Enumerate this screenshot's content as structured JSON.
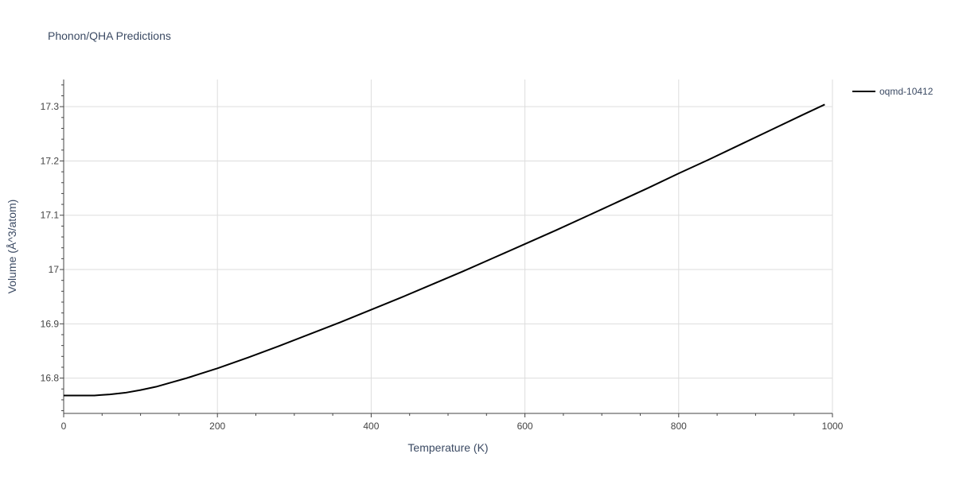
{
  "chart_data": {
    "type": "line",
    "title": "Phonon/QHA Predictions",
    "xlabel": "Temperature (K)",
    "ylabel": "Volume (Å^3/atom)",
    "xlim": [
      0,
      1000
    ],
    "ylim": [
      16.735,
      17.35
    ],
    "x_ticks": [
      0,
      200,
      400,
      600,
      800,
      1000
    ],
    "x_tick_labels": [
      "0",
      "200",
      "400",
      "600",
      "800",
      "1000"
    ],
    "y_ticks": [
      16.8,
      16.9,
      17.0,
      17.1,
      17.2,
      17.3
    ],
    "y_tick_labels": [
      "16.8",
      "16.9",
      "17",
      "17.1",
      "17.2",
      "17.3"
    ],
    "grid": true,
    "legend_position": "top-right",
    "series": [
      {
        "name": "oqmd-10412",
        "color": "#000000",
        "x": [
          0,
          20,
          40,
          50,
          60,
          80,
          100,
          120,
          140,
          160,
          180,
          200,
          240,
          280,
          320,
          360,
          400,
          440,
          480,
          520,
          560,
          600,
          640,
          680,
          720,
          760,
          800,
          840,
          880,
          920,
          960,
          990
        ],
        "y": [
          16.768,
          16.768,
          16.768,
          16.769,
          16.77,
          16.773,
          16.778,
          16.784,
          16.792,
          16.8,
          16.809,
          16.818,
          16.838,
          16.859,
          16.881,
          16.903,
          16.926,
          16.949,
          16.973,
          16.997,
          17.022,
          17.047,
          17.072,
          17.098,
          17.124,
          17.15,
          17.177,
          17.203,
          17.23,
          17.257,
          17.284,
          17.304
        ]
      }
    ]
  }
}
